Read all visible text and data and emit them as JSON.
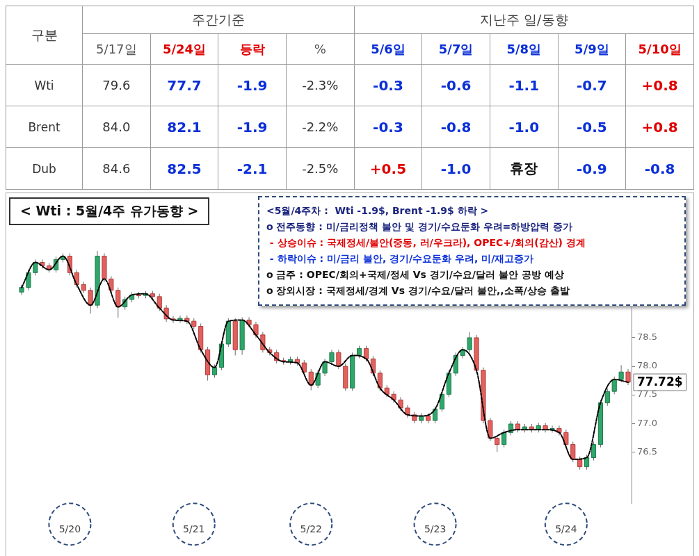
{
  "chart_data": [
    {
      "type": "other",
      "annotations": [
        "구분",
        "주간기준",
        "지난주 일/동향"
      ],
      "categories": [
        "5/17일",
        "5/24일",
        "등락",
        "%",
        "5/6일",
        "5/7일",
        "5/8일",
        "5/9일",
        "5/10일"
      ],
      "y_categories": [
        "Wti",
        "Brent",
        "Dub"
      ],
      "cell_labels": [
        [
          "79.6",
          "77.7",
          "-1.9",
          "-2.3%",
          "-0.3",
          "-0.6",
          "-1.1",
          "-0.7",
          "+0.8"
        ],
        [
          "84.0",
          "82.1",
          "-1.9",
          "-2.2%",
          "-0.3",
          "-0.8",
          "-1.0",
          "-0.5",
          "+0.8"
        ],
        [
          "84.6",
          "82.5",
          "-2.1",
          "-2.5%",
          "+0.5",
          "-1.0",
          "휴장",
          "-0.9",
          "-0.8"
        ]
      ]
    },
    {
      "type": "candlestick",
      "title": "< Wti : 5월/4주 유가동향 >",
      "categories": [
        null,
        null,
        null,
        null,
        null,
        null,
        null,
        "5/20",
        null,
        null,
        null,
        null,
        null,
        null,
        null,
        null,
        null,
        null,
        null,
        null,
        null,
        null,
        null,
        null,
        null,
        "5/21",
        null,
        null,
        null,
        null,
        null,
        null,
        null,
        null,
        null,
        null,
        null,
        null,
        null,
        null,
        null,
        null,
        "5/22",
        null,
        null,
        null,
        null,
        null,
        null,
        null,
        null,
        null,
        null,
        null,
        null,
        null,
        null,
        null,
        null,
        null,
        "5/23",
        null,
        null,
        null,
        null,
        null,
        null,
        null,
        null,
        null,
        null,
        null,
        null,
        null,
        null,
        null,
        null,
        null,
        null,
        "5/24",
        null,
        null,
        null,
        null,
        null,
        null,
        null,
        null,
        null
      ],
      "ohlc": [
        [
          79.3,
          79.43,
          79.25,
          79.38
        ],
        [
          79.38,
          79.69,
          79.33,
          79.64
        ],
        [
          79.64,
          79.87,
          79.59,
          79.82
        ],
        [
          79.82,
          79.87,
          79.71,
          79.76
        ],
        [
          79.76,
          79.81,
          79.64,
          79.69
        ],
        [
          79.69,
          79.92,
          79.64,
          79.87
        ],
        [
          79.87,
          79.98,
          79.82,
          79.93
        ],
        [
          79.93,
          79.98,
          79.59,
          79.64
        ],
        [
          79.64,
          79.69,
          79.38,
          79.43
        ],
        [
          79.43,
          79.48,
          79.28,
          79.33
        ],
        [
          79.33,
          79.38,
          78.92,
          79.07
        ],
        [
          79.07,
          80.02,
          79.02,
          79.93
        ],
        [
          79.93,
          79.98,
          79.48,
          79.53
        ],
        [
          79.53,
          79.58,
          79.28,
          79.33
        ],
        [
          79.33,
          79.38,
          78.85,
          79.04
        ],
        [
          79.04,
          79.22,
          78.99,
          79.17
        ],
        [
          79.17,
          79.3,
          79.12,
          79.25
        ],
        [
          79.25,
          79.3,
          79.19,
          79.24
        ],
        [
          79.24,
          79.32,
          79.19,
          79.27
        ],
        [
          79.27,
          79.32,
          79.17,
          79.22
        ],
        [
          79.22,
          79.27,
          78.97,
          79.02
        ],
        [
          79.02,
          79.07,
          78.78,
          78.83
        ],
        [
          78.83,
          78.88,
          78.76,
          78.81
        ],
        [
          78.81,
          78.89,
          78.76,
          78.84
        ],
        [
          78.84,
          78.89,
          78.74,
          78.79
        ],
        [
          78.79,
          78.84,
          78.65,
          78.7
        ],
        [
          78.7,
          78.75,
          78.24,
          78.29
        ],
        [
          78.29,
          78.34,
          77.75,
          77.85
        ],
        [
          77.85,
          78.03,
          77.8,
          77.98
        ],
        [
          77.98,
          78.44,
          77.93,
          78.39
        ],
        [
          78.39,
          78.84,
          78.34,
          78.79
        ],
        [
          78.79,
          78.84,
          78.19,
          78.29
        ],
        [
          78.29,
          78.86,
          78.2,
          78.81
        ],
        [
          78.81,
          78.86,
          78.68,
          78.73
        ],
        [
          78.73,
          78.78,
          78.5,
          78.55
        ],
        [
          78.55,
          78.6,
          78.24,
          78.29
        ],
        [
          78.29,
          78.34,
          78.19,
          78.24
        ],
        [
          78.24,
          78.29,
          78.05,
          78.1
        ],
        [
          78.1,
          78.15,
          78.03,
          78.08
        ],
        [
          78.08,
          78.17,
          78.03,
          78.12
        ],
        [
          78.12,
          78.17,
          78.01,
          78.06
        ],
        [
          78.06,
          78.11,
          77.85,
          77.9
        ],
        [
          77.9,
          77.95,
          77.58,
          77.67
        ],
        [
          77.67,
          77.93,
          77.62,
          77.88
        ],
        [
          77.88,
          78.13,
          77.83,
          78.08
        ],
        [
          78.08,
          78.29,
          78.03,
          78.24
        ],
        [
          78.24,
          78.29,
          77.95,
          78.0
        ],
        [
          78.0,
          78.05,
          77.57,
          77.62
        ],
        [
          77.62,
          78.24,
          77.57,
          78.19
        ],
        [
          78.19,
          78.36,
          78.14,
          78.31
        ],
        [
          78.31,
          78.36,
          78.08,
          78.13
        ],
        [
          78.13,
          78.18,
          77.83,
          77.88
        ],
        [
          77.88,
          77.93,
          77.57,
          77.62
        ],
        [
          77.62,
          77.67,
          77.46,
          77.51
        ],
        [
          77.51,
          77.56,
          77.36,
          77.41
        ],
        [
          77.41,
          77.46,
          77.22,
          77.27
        ],
        [
          77.27,
          77.32,
          77.1,
          77.15
        ],
        [
          77.15,
          77.2,
          77.0,
          77.05
        ],
        [
          77.05,
          77.18,
          77.0,
          77.13
        ],
        [
          77.13,
          77.18,
          77.0,
          77.05
        ],
        [
          77.05,
          77.3,
          77.0,
          77.25
        ],
        [
          77.25,
          77.56,
          77.2,
          77.51
        ],
        [
          77.51,
          77.93,
          77.46,
          77.88
        ],
        [
          77.88,
          78.24,
          77.83,
          78.19
        ],
        [
          78.19,
          78.34,
          78.14,
          78.29
        ],
        [
          78.29,
          78.6,
          78.24,
          78.5
        ],
        [
          78.5,
          78.55,
          77.88,
          77.93
        ],
        [
          77.93,
          77.98,
          77.0,
          77.05
        ],
        [
          77.05,
          77.1,
          76.69,
          76.74
        ],
        [
          76.74,
          76.79,
          76.5,
          76.63
        ],
        [
          76.63,
          76.89,
          76.58,
          76.84
        ],
        [
          76.84,
          77.04,
          76.79,
          76.99
        ],
        [
          76.99,
          77.04,
          76.84,
          76.89
        ],
        [
          76.89,
          76.99,
          76.84,
          76.94
        ],
        [
          76.94,
          76.99,
          76.84,
          76.89
        ],
        [
          76.89,
          77.01,
          76.84,
          76.96
        ],
        [
          76.96,
          77.01,
          76.84,
          76.89
        ],
        [
          76.89,
          76.96,
          76.84,
          76.91
        ],
        [
          76.91,
          76.96,
          76.79,
          76.84
        ],
        [
          76.84,
          76.89,
          76.58,
          76.63
        ],
        [
          76.63,
          76.68,
          76.32,
          76.37
        ],
        [
          76.37,
          76.42,
          76.19,
          76.24
        ],
        [
          76.24,
          76.45,
          76.19,
          76.4
        ],
        [
          76.4,
          76.68,
          76.35,
          76.63
        ],
        [
          76.63,
          77.41,
          76.58,
          77.36
        ],
        [
          77.36,
          77.61,
          77.31,
          77.56
        ],
        [
          77.56,
          77.82,
          77.51,
          77.77
        ],
        [
          77.77,
          78.02,
          77.72,
          77.9
        ],
        [
          77.9,
          77.95,
          77.67,
          77.72
        ]
      ],
      "series": [
        {
          "type": "line",
          "color": "#000000",
          "line_style": "dashed",
          "marker": "none",
          "values": [
            79.38,
            null,
            79.82,
            null,
            79.69,
            null,
            79.93,
            null,
            79.43,
            null,
            79.07,
            null,
            79.53,
            null,
            79.04,
            null,
            79.25,
            null,
            79.27,
            null,
            79.02,
            null,
            78.81,
            null,
            78.79,
            null,
            78.29,
            null,
            77.98,
            null,
            78.79,
            null,
            78.81,
            null,
            78.55,
            null,
            78.24,
            null,
            78.08,
            null,
            78.06,
            null,
            77.67,
            null,
            78.08,
            null,
            78.0,
            null,
            78.19,
            null,
            78.13,
            null,
            77.62,
            null,
            77.41,
            null,
            77.15,
            null,
            77.13,
            null,
            77.25,
            null,
            77.88,
            null,
            78.29,
            null,
            77.93,
            null,
            76.74,
            null,
            76.84,
            null,
            76.89,
            null,
            76.89,
            null,
            76.89,
            null,
            76.84,
            null,
            76.37,
            null,
            76.4,
            null,
            77.36,
            null,
            77.77,
            null,
            77.72
          ]
        }
      ],
      "ylim": [
        75.6,
        80.9
      ],
      "yticks": [
        76.5,
        {
          "value": 77,
          "label": "77.0"
        },
        77.5,
        {
          "value": 78,
          "label": "78.0"
        },
        78.5
      ],
      "annotations": [
        "77.72$",
        "<5월/4주차 :  Wti -1.9$, Brent -1.9$ 하락 >",
        "o 전주동향 : 미/금리정책 불안 및 경기/수요둔화 우려=하방압력 증가",
        " - 상승이슈 : 국제정세/불안(중동, 러/우크라), OPEC+/회의(감산) 경계",
        " - 하락이슈 : 미/금리 불안, 경기/수요둔화 우려, 미/재고증가",
        "o 금주 : OPEC/회의+국제/정세 Vs 경기/수요/달러 불안 공방 예상",
        "o 장외시장 : 국제정세/경계 Vs 경기/수요/달러 불안,,소폭/상승 출발"
      ]
    }
  ]
}
